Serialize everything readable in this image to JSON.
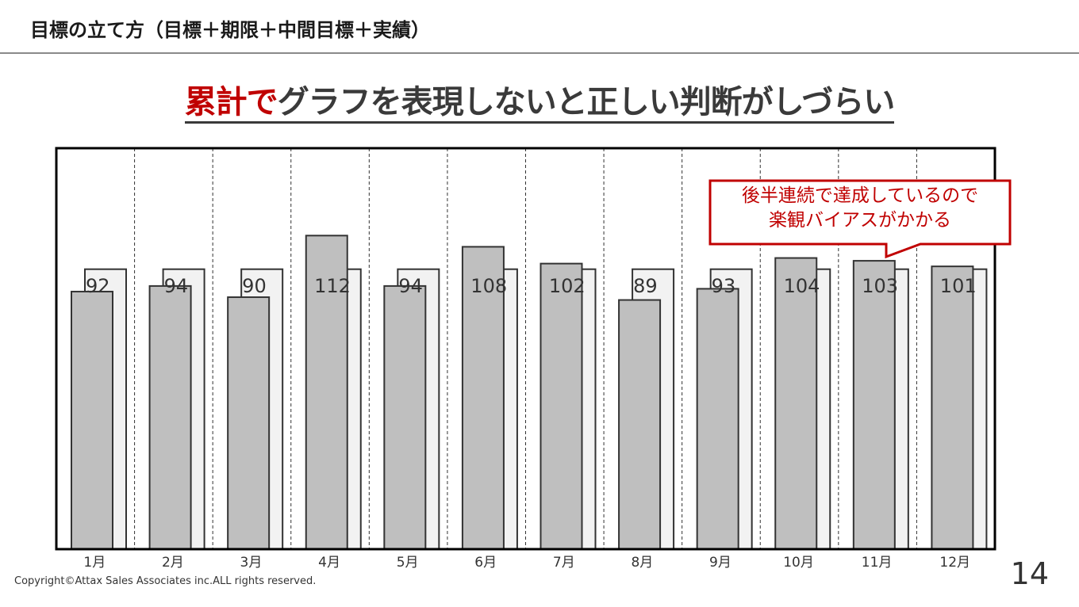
{
  "header": {
    "title": "目標の立て方（目標＋期限＋中間目標＋実績）"
  },
  "headline": {
    "accent": "累計で",
    "rest": "グラフを表現しないと正しい判断がしづらい"
  },
  "callout": {
    "line1": "後半連続で達成しているので",
    "line2": "楽観バイアスがかかる"
  },
  "footer": {
    "copyright": "Copyright©Attax Sales Associates inc.ALL rights reserved.",
    "page_number": "14"
  },
  "colors": {
    "actual_fill": "#bfbfbf",
    "target_fill": "#f2f2f2",
    "bar_stroke": "#333333",
    "accent": "#c00000",
    "frame": "#000000"
  },
  "chart_data": {
    "type": "bar",
    "categories": [
      "1月",
      "2月",
      "3月",
      "4月",
      "5月",
      "6月",
      "7月",
      "8月",
      "9月",
      "10月",
      "11月",
      "12月"
    ],
    "series": [
      {
        "values": [
          100,
          100,
          100,
          100,
          100,
          100,
          100,
          100,
          100,
          100,
          100,
          100
        ]
      },
      {
        "values": [
          92,
          94,
          90,
          112,
          94,
          108,
          102,
          89,
          93,
          104,
          103,
          101
        ]
      }
    ],
    "data_labels": [
      "92",
      "94",
      "90",
      "112",
      "94",
      "108",
      "102",
      "89",
      "93",
      "104",
      "103",
      "101"
    ],
    "ylim": [
      0,
      120
    ],
    "grid": "vertical-dashed",
    "legend": "none"
  }
}
